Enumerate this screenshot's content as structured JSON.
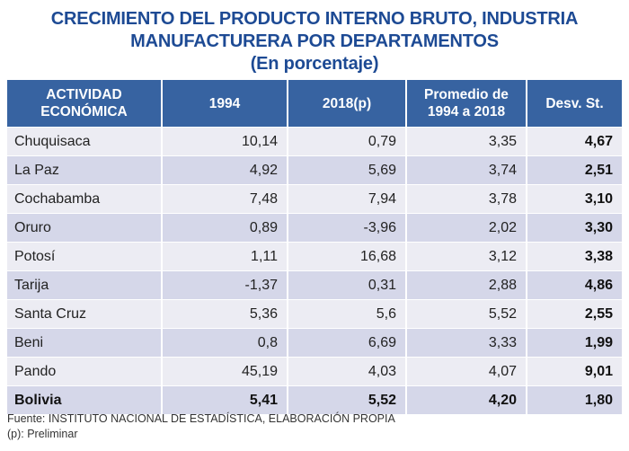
{
  "title": {
    "line1": "CRECIMIENTO DEL PRODUCTO INTERNO BRUTO, INDUSTRIA",
    "line2": "MANUFACTURERA POR DEPARTAMENTOS",
    "line3": "(En porcentaje)"
  },
  "headers": {
    "c0a": "ACTIVIDAD",
    "c0b": "ECONÓMICA",
    "c1": "1994",
    "c2": "2018(p)",
    "c3a": "Promedio de",
    "c3b": "1994 a 2018",
    "c4": "Desv. St."
  },
  "rows": [
    [
      "Chuquisaca",
      "10,14",
      "0,79",
      "3,35",
      "4,67"
    ],
    [
      "La Paz",
      "4,92",
      "5,69",
      "3,74",
      "2,51"
    ],
    [
      "Cochabamba",
      "7,48",
      "7,94",
      "3,78",
      "3,10"
    ],
    [
      "Oruro",
      "0,89",
      "-3,96",
      "2,02",
      "3,30"
    ],
    [
      "Potosí",
      "1,11",
      "16,68",
      "3,12",
      "3,38"
    ],
    [
      "Tarija",
      "-1,37",
      "0,31",
      "2,88",
      "4,86"
    ],
    [
      "Santa Cruz",
      "5,36",
      "5,6",
      "5,52",
      "2,55"
    ],
    [
      "Beni",
      "0,8",
      "6,69",
      "3,33",
      "1,99"
    ],
    [
      "Pando",
      "45,19",
      "4,03",
      "4,07",
      "9,01"
    ],
    [
      "Bolivia",
      "5,41",
      "5,52",
      "4,20",
      "1,80"
    ]
  ],
  "footer": {
    "source": "Fuente: INSTITUTO NACIONAL DE ESTADÍSTICA, ELABORACIÓN PROPIA",
    "note": "(p): Preliminar"
  }
}
